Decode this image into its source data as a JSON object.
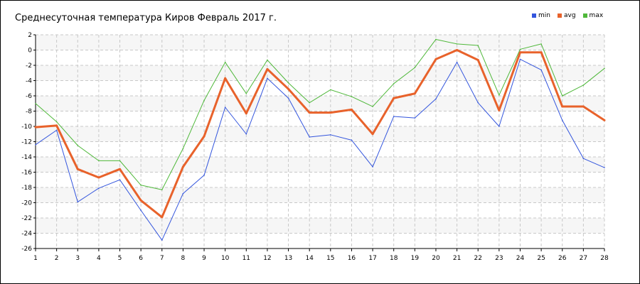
{
  "chart_data": {
    "type": "line",
    "title": "Среднесуточная температура Киров  Февраль 2017 г.",
    "x": [
      1,
      2,
      3,
      4,
      5,
      6,
      7,
      8,
      9,
      10,
      11,
      12,
      13,
      14,
      15,
      16,
      17,
      18,
      19,
      20,
      21,
      22,
      23,
      24,
      25,
      26,
      27,
      28
    ],
    "x_ticks": [
      "1",
      "2",
      "3",
      "4",
      "5",
      "6",
      "7",
      "8",
      "9",
      "10",
      "11",
      "12",
      "13",
      "14",
      "15",
      "16",
      "17",
      "18",
      "19",
      "20",
      "21",
      "22",
      "23",
      "24",
      "25",
      "26",
      "27",
      "28"
    ],
    "y_ticks": [
      "2",
      "0",
      "-2",
      "-4",
      "-6",
      "-8",
      "-10",
      "-12",
      "-14",
      "-16",
      "-18",
      "-20",
      "-22",
      "-24",
      "-26"
    ],
    "ylim": [
      -26,
      2
    ],
    "grid": true,
    "legend_position": "top-right",
    "series": [
      {
        "name": "min",
        "color": "#3355dd",
        "values": [
          -12.4,
          -10.5,
          -19.9,
          -18.1,
          -17.0,
          -21.0,
          -24.9,
          -18.8,
          -16.4,
          -7.5,
          -11.0,
          -3.7,
          -6.3,
          -11.4,
          -11.1,
          -11.8,
          -15.3,
          -8.7,
          -8.9,
          -6.4,
          -1.6,
          -6.9,
          -10.0,
          -1.2,
          -2.6,
          -9.2,
          -14.2,
          -15.4
        ]
      },
      {
        "name": "avg",
        "color": "#e8622b",
        "values": [
          -10.1,
          -9.9,
          -15.6,
          -16.7,
          -15.6,
          -19.7,
          -21.9,
          -15.3,
          -11.3,
          -3.7,
          -8.3,
          -2.5,
          -5.1,
          -8.2,
          -8.2,
          -7.8,
          -11.0,
          -6.3,
          -5.7,
          -1.2,
          0.0,
          -1.3,
          -7.9,
          -0.3,
          -0.3,
          -7.4,
          -7.4,
          -9.2
        ]
      },
      {
        "name": "max",
        "color": "#4fb83a",
        "values": [
          -7.0,
          -9.4,
          -12.5,
          -14.5,
          -14.5,
          -17.7,
          -18.3,
          -12.9,
          -6.6,
          -1.6,
          -5.7,
          -1.3,
          -4.3,
          -6.9,
          -5.2,
          -6.1,
          -7.4,
          -4.4,
          -2.3,
          1.4,
          0.8,
          0.6,
          -5.9,
          0.1,
          0.8,
          -6.0,
          -4.6,
          -2.4
        ]
      }
    ]
  }
}
